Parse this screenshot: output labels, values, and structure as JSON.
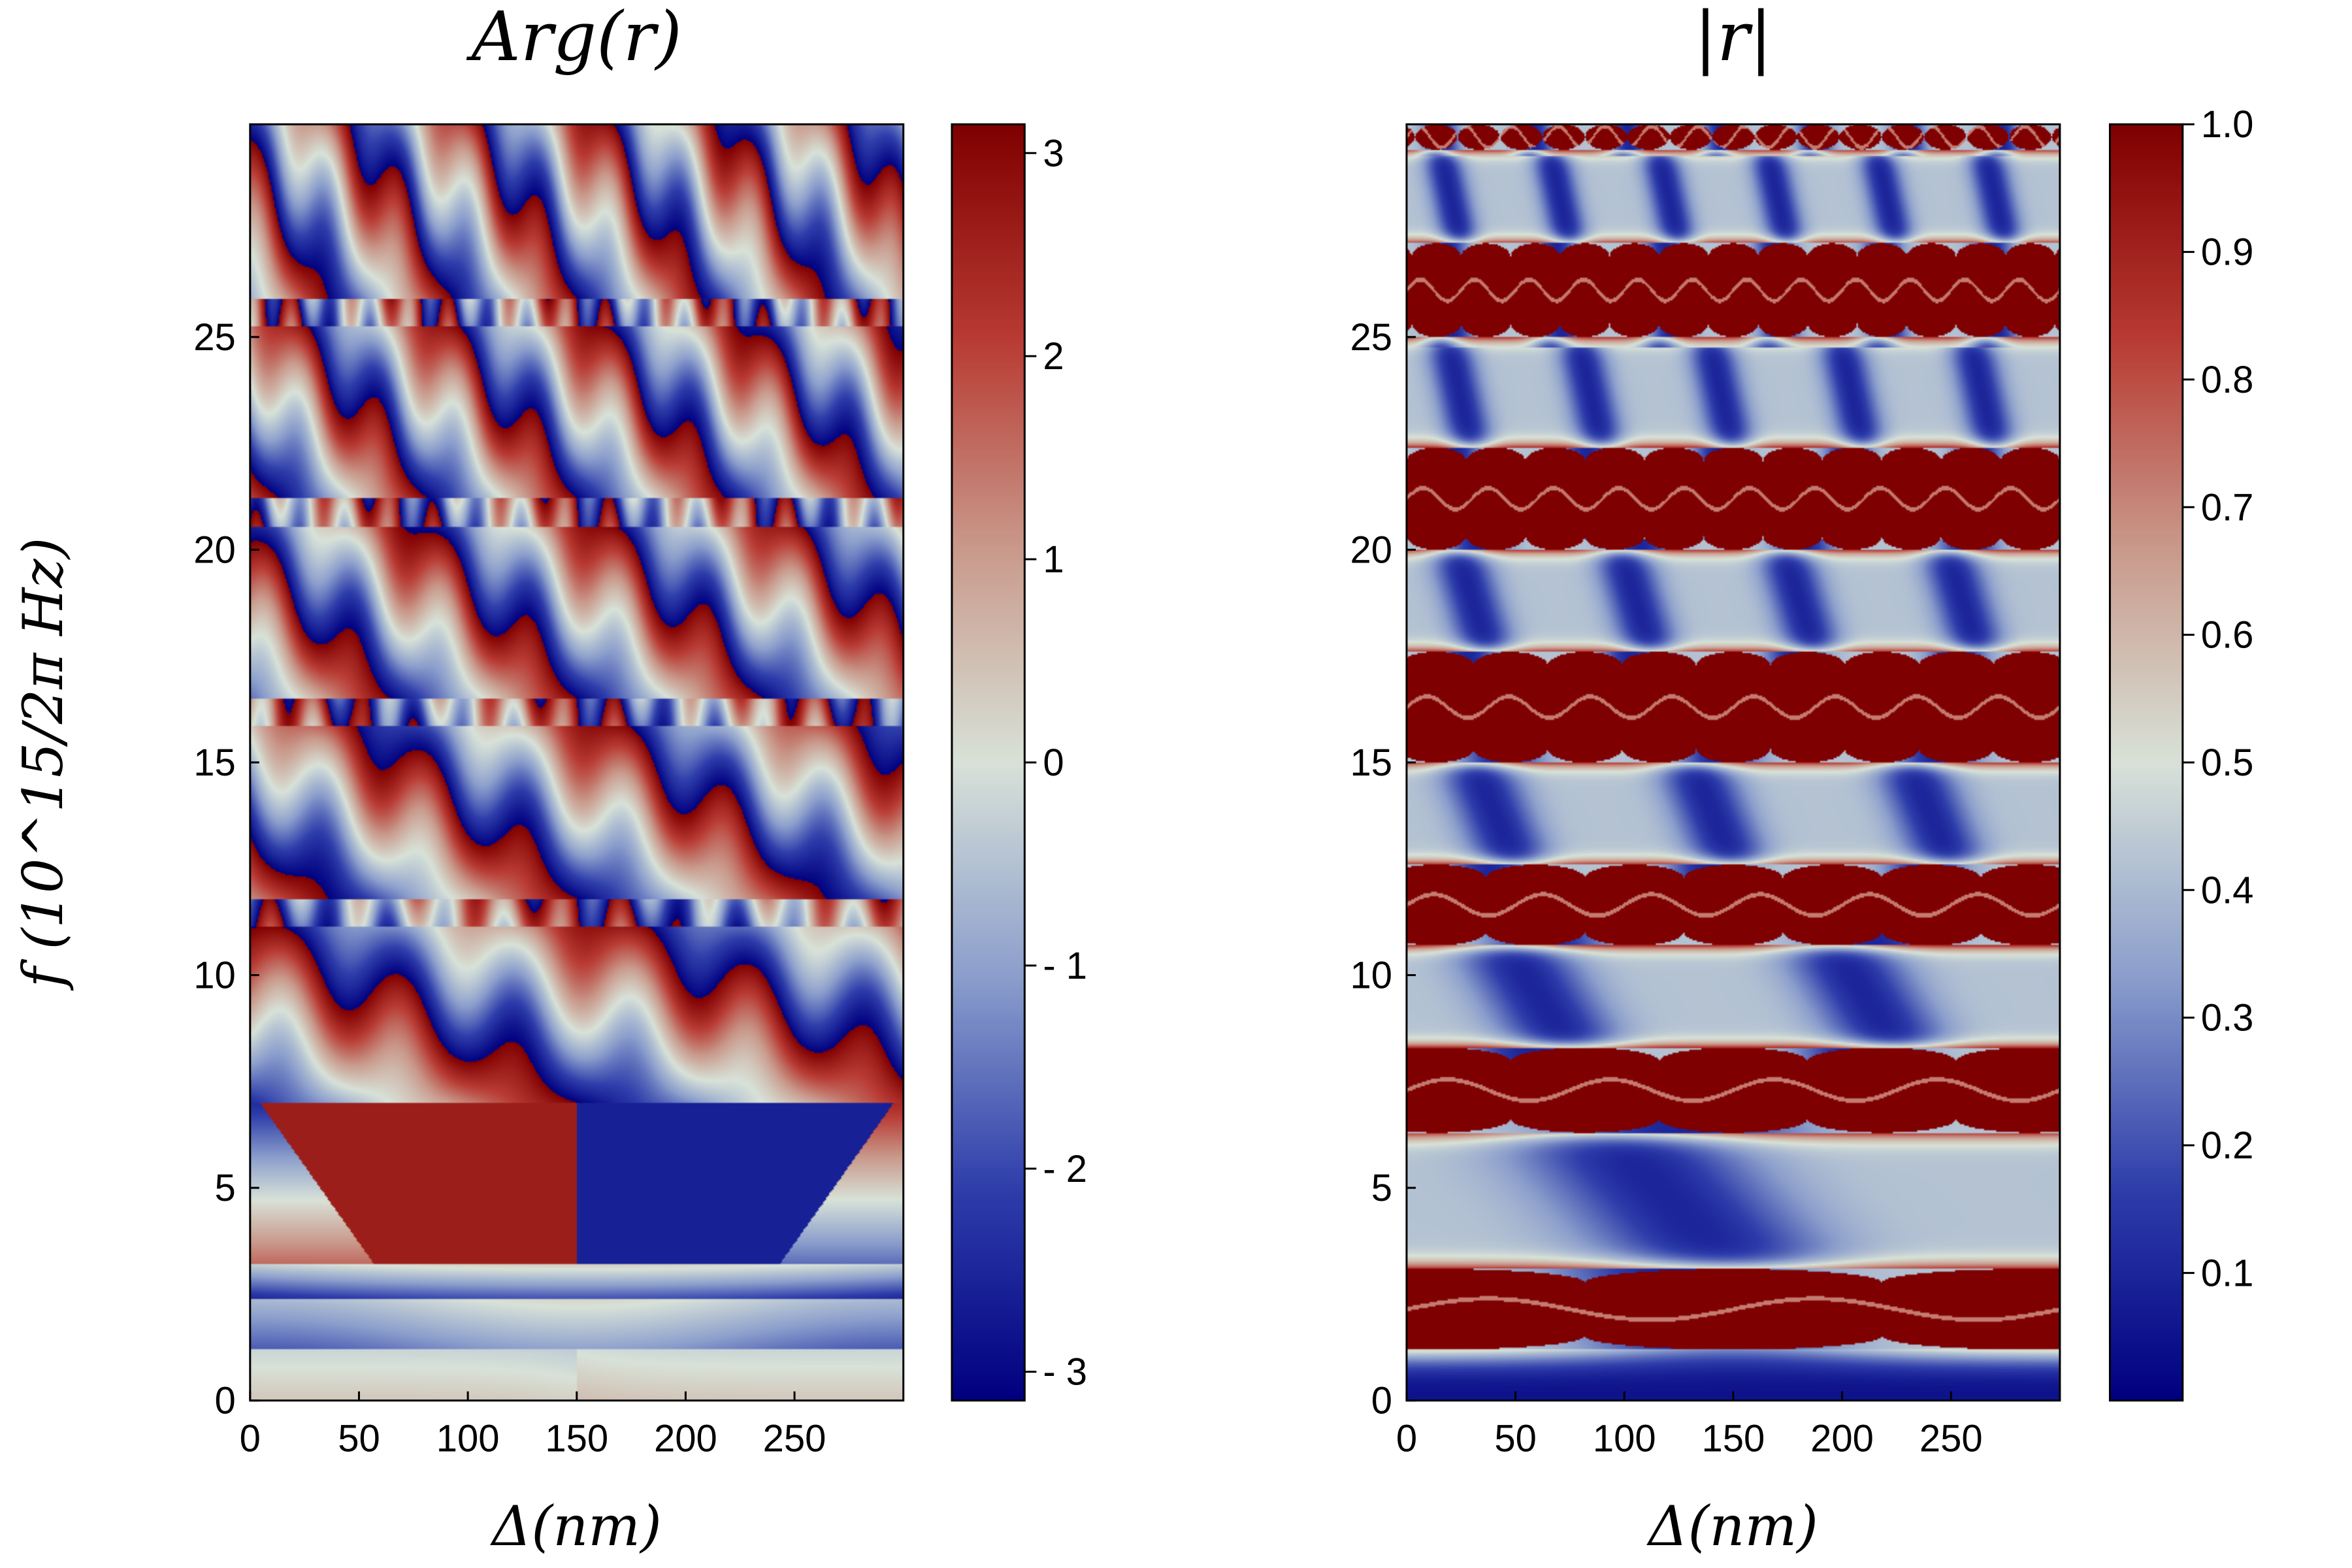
{
  "chart_data": [
    {
      "type": "heatmap",
      "title": "Arg(r)",
      "xlabel": "Δ(nm)",
      "ylabel": "f (10^15/2π Hz)",
      "xlim": [
        0,
        300
      ],
      "ylim": [
        0,
        30
      ],
      "x_ticks": [
        "0",
        "50",
        "100",
        "150",
        "200",
        "250"
      ],
      "x_tick_values": [
        0,
        50,
        100,
        150,
        200,
        250
      ],
      "y_ticks": [
        "0",
        "5",
        "10",
        "15",
        "20",
        "25"
      ],
      "y_tick_values": [
        0,
        5,
        10,
        15,
        20,
        25
      ],
      "colorbar": {
        "range": [
          -3.14159,
          3.14159
        ],
        "ticks": [
          "- 3",
          "- 2",
          "- 1",
          "0",
          "1",
          "2",
          "3"
        ],
        "tick_values": [
          -3,
          -2,
          -1,
          0,
          1,
          2,
          3
        ]
      },
      "colormap": [
        "#00007f",
        "#2f3eab",
        "#8c9fcc",
        "#d8e2d8",
        "#c99a8c",
        "#b83a33",
        "#7f0000"
      ],
      "band_edges_f": [
        1.2,
        2.4,
        3.2,
        7.0,
        11.8,
        16.5,
        21.2,
        25.9
      ],
      "phase_jump_x": 150
    },
    {
      "type": "heatmap",
      "title": "|r|",
      "xlabel": "Δ(nm)",
      "ylabel": "",
      "xlim": [
        0,
        300
      ],
      "ylim": [
        0,
        30
      ],
      "x_ticks": [
        "0",
        "50",
        "100",
        "150",
        "200",
        "250"
      ],
      "x_tick_values": [
        0,
        50,
        100,
        150,
        200,
        250
      ],
      "y_ticks": [
        "0",
        "5",
        "10",
        "15",
        "20",
        "25"
      ],
      "y_tick_values": [
        0,
        5,
        10,
        15,
        20,
        25
      ],
      "colorbar": {
        "range": [
          0,
          1
        ],
        "ticks": [
          "0.1",
          "0.2",
          "0.3",
          "0.4",
          "0.5",
          "0.6",
          "0.7",
          "0.8",
          "0.9",
          "1.0"
        ],
        "tick_values": [
          0.1,
          0.2,
          0.3,
          0.4,
          0.5,
          0.6,
          0.7,
          0.8,
          0.9,
          1.0
        ]
      },
      "colormap": [
        "#00007f",
        "#2f3eab",
        "#8c9fcc",
        "#d8e2d8",
        "#c99a8c",
        "#b83a33",
        "#7f0000"
      ],
      "stopbands_f": [
        [
          1.2,
          3.1
        ],
        [
          6.3,
          8.3
        ],
        [
          10.7,
          12.6
        ],
        [
          15.0,
          17.6
        ],
        [
          20.0,
          22.4
        ],
        [
          25.0,
          27.2
        ],
        [
          29.4,
          30
        ]
      ]
    }
  ]
}
